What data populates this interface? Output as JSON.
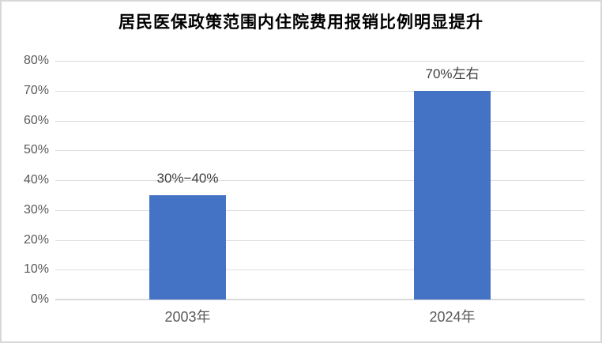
{
  "title": "居民医保政策范围内住院费用报销比例明显提升",
  "colors": {
    "bar": "#4472C4",
    "gridline": "#dcdcdc",
    "axis_line": "#d9d9d9",
    "axis_text": "#595959",
    "data_label_text": "#3f3f3f",
    "title_text": "#000000",
    "border": "#d8d8d8",
    "background": "#ffffff"
  },
  "chart_data": {
    "type": "bar",
    "title": "居民医保政策范围内住院费用报销比例明显提升",
    "categories": [
      "2003年",
      "2024年"
    ],
    "values": [
      35,
      70
    ],
    "data_labels": [
      "30%−40%",
      "70%左右"
    ],
    "xlabel": "",
    "ylabel": "",
    "ylim": [
      0,
      80
    ],
    "ytick_step": 10,
    "ytick_labels": [
      "0%",
      "10%",
      "20%",
      "30%",
      "40%",
      "50%",
      "60%",
      "70%",
      "80%"
    ],
    "grid": true,
    "legend": false
  }
}
